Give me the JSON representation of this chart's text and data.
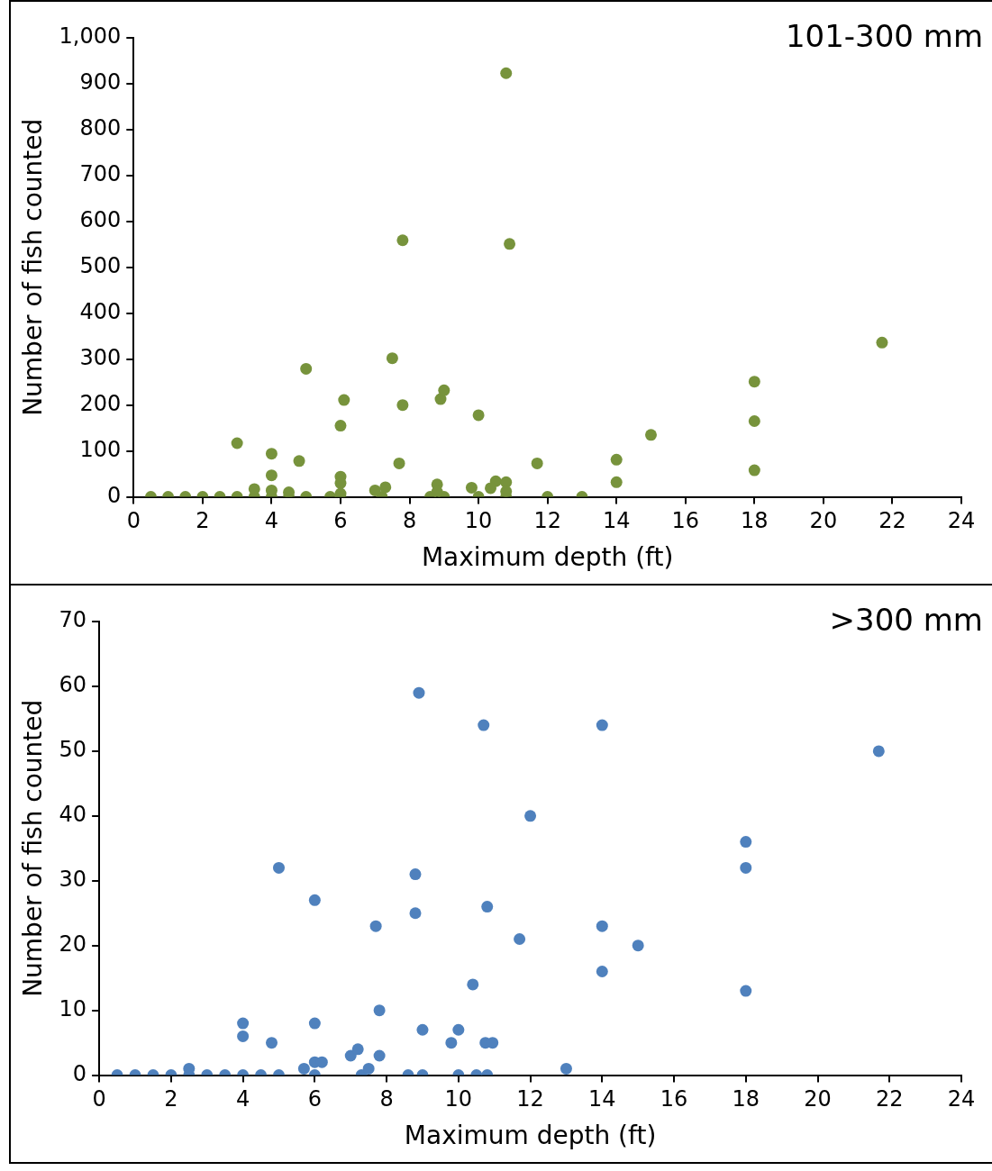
{
  "chart_data": [
    {
      "type": "scatter",
      "title": "101-300 mm",
      "xlabel": "Maximum depth (ft)",
      "ylabel": "Number of fish counted",
      "grid": false,
      "legend": false,
      "marker": "circle",
      "xlim": [
        0,
        24
      ],
      "xticks": [
        0,
        2,
        4,
        6,
        8,
        10,
        12,
        14,
        16,
        18,
        20,
        22,
        24
      ],
      "ylim": [
        0,
        1000
      ],
      "yticks": [
        0,
        100,
        200,
        300,
        400,
        500,
        600,
        700,
        800,
        900,
        {
          "value": 1000,
          "label": "1,000"
        }
      ],
      "series": [
        {
          "color": "#77933c",
          "x": [
            0.5,
            1,
            1.5,
            2,
            2.5,
            3,
            3.5,
            4,
            4.5,
            5,
            5.7,
            6,
            7.2,
            8.6,
            9,
            10,
            10.8,
            12,
            13,
            3,
            3.5,
            4,
            4,
            4,
            4.5,
            4.8,
            5,
            6.1,
            6,
            6,
            6,
            6,
            7,
            7.3,
            7.5,
            7.8,
            7.7,
            8.9,
            9,
            8.8,
            8.8,
            10,
            9.8,
            10.5,
            10.35,
            10.8,
            10.8,
            11.7,
            7.8,
            10.8,
            10.9,
            14,
            14,
            15,
            18,
            18,
            18,
            21.7
          ],
          "values": [
            0,
            0,
            0,
            0,
            0,
            0,
            0,
            0,
            0,
            0,
            0,
            0,
            0,
            0,
            0,
            0,
            0,
            0,
            0,
            117,
            17,
            94,
            47,
            14,
            10,
            78,
            279,
            211,
            155,
            44,
            30,
            7,
            14,
            21,
            302,
            200,
            73,
            213,
            232,
            27,
            11,
            178,
            20,
            34,
            19,
            32,
            12,
            73,
            559,
            923,
            551,
            81,
            32,
            135,
            251,
            165,
            58,
            336
          ]
        }
      ]
    },
    {
      "type": "scatter",
      "title": ">300 mm",
      "xlabel": "Maximum depth (ft)",
      "ylabel": "Number of fish counted",
      "grid": false,
      "legend": false,
      "marker": "circle",
      "xlim": [
        0,
        24
      ],
      "xticks": [
        0,
        2,
        4,
        6,
        8,
        10,
        12,
        14,
        16,
        18,
        20,
        22,
        24
      ],
      "ylim": [
        0,
        70
      ],
      "yticks": [
        0,
        10,
        20,
        30,
        40,
        50,
        60,
        70
      ],
      "series": [
        {
          "color": "#4f81bd",
          "x": [
            0.5,
            1,
            1.5,
            2,
            2.5,
            3,
            3.5,
            4,
            4.5,
            5,
            6,
            7.3,
            8.6,
            9,
            10,
            10.5,
            10.8,
            2.5,
            4,
            4,
            4.8,
            5,
            5.7,
            6,
            6,
            6.2,
            6,
            7,
            7.2,
            7.5,
            7.8,
            7.8,
            7.7,
            9,
            8.8,
            8.8,
            8.9,
            9.8,
            10,
            10.4,
            10.75,
            10.95,
            10.7,
            10.8,
            11.7,
            12,
            13,
            14,
            14,
            14,
            15,
            18,
            18,
            18,
            21.7
          ],
          "values": [
            0,
            0,
            0,
            0,
            0,
            0,
            0,
            0,
            0,
            0,
            0,
            0,
            0,
            0,
            0,
            0,
            0,
            1,
            8,
            6,
            5,
            32,
            1,
            8,
            2,
            2,
            27,
            3,
            4,
            1,
            10,
            3,
            23,
            7,
            31,
            25,
            59,
            5,
            7,
            14,
            5,
            5,
            54,
            26,
            21,
            40,
            1,
            54,
            23,
            16,
            20,
            36,
            32,
            13,
            50
          ]
        }
      ]
    }
  ]
}
